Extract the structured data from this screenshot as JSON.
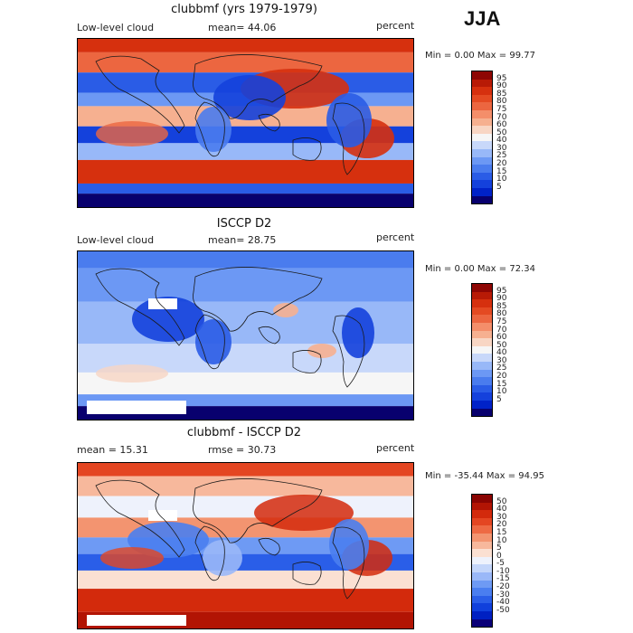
{
  "season": "JJA",
  "palettes": {
    "abs": [
      "#08006e",
      "#0022c8",
      "#1441dc",
      "#2a5ce6",
      "#4a7cee",
      "#6c98f4",
      "#98b8f8",
      "#c8d8fa",
      "#f6f6f6",
      "#f8d6c4",
      "#f6b090",
      "#f48e6a",
      "#ec6640",
      "#e44a22",
      "#d6300e",
      "#b81a06",
      "#8e0604"
    ],
    "diff": [
      "#0a0078",
      "#0020c2",
      "#1040dc",
      "#2a5ee8",
      "#4a7ef0",
      "#6e9af4",
      "#9ab8f8",
      "#c4d6fa",
      "#eef2fc",
      "#fbe0d2",
      "#f7b89c",
      "#f39470",
      "#ee6a44",
      "#e44622",
      "#d32a0c",
      "#b21404",
      "#8a0402"
    ]
  },
  "panels": [
    {
      "title": "clubbmf (yrs 1979-1979)",
      "left_label": "Low-level cloud",
      "center_label": "mean=  44.06",
      "right_label": "percent",
      "minmax": "Min =    0.00 Max =   99.77",
      "palette": "abs",
      "colorbar_labels": [
        "95",
        "90",
        "85",
        "80",
        "75",
        "70",
        "60",
        "50",
        "40",
        "30",
        "25",
        "20",
        "15",
        "10",
        "5"
      ]
    },
    {
      "title": "ISCCP D2",
      "left_label": "Low-level cloud",
      "center_label": "mean=  28.75",
      "right_label": "percent",
      "minmax": "Min =    0.00 Max =   72.34",
      "palette": "abs",
      "colorbar_labels": [
        "95",
        "90",
        "85",
        "80",
        "75",
        "70",
        "60",
        "50",
        "40",
        "30",
        "25",
        "20",
        "15",
        "10",
        "5"
      ]
    },
    {
      "title": "clubbmf - ISCCP D2",
      "left_label": "mean =  15.31",
      "center_label": "rmse =  30.73",
      "right_label": "percent",
      "minmax": "Min = -35.44 Max =  94.95",
      "palette": "diff",
      "colorbar_labels": [
        "50",
        "40",
        "30",
        "20",
        "15",
        "10",
        "5",
        "0",
        "-5",
        "-10",
        "-15",
        "-20",
        "-30",
        "-40",
        "-50"
      ]
    }
  ]
}
